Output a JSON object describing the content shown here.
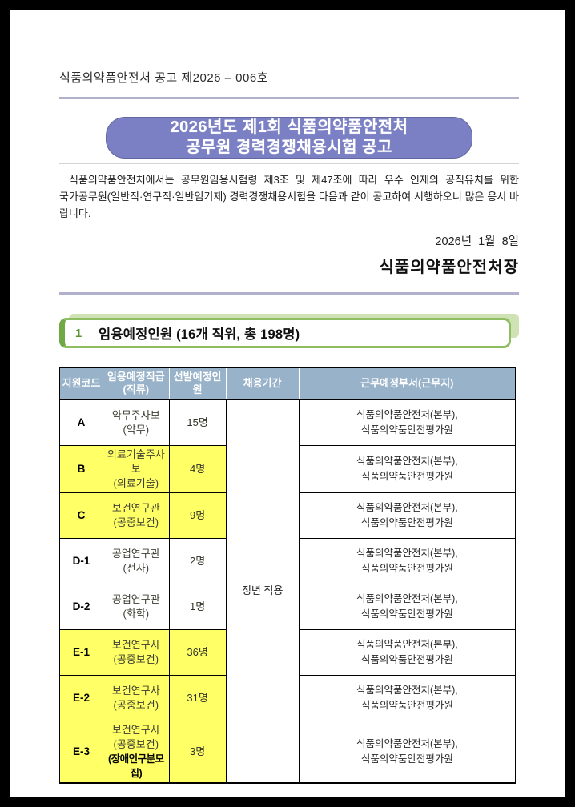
{
  "document": {
    "doc_number": "식품의약품안전처 공고 제2026 – 006호",
    "banner_line1": "2026년도 제1회 식품의약품안전처",
    "banner_line2": "공무원 경력경쟁채용시험 공고",
    "intro_line1": "식품의약품안전처에서는 공무원임용시험령 제3조 및 제47조에 따라 우수 인재의 공직유치를 위한",
    "intro_line2": "국가공무원(일반직·연구직·일반임기제) 경력경쟁채용시험을 다음과 같이 공고하여 시행하오니 많은 응시 바랍니다.",
    "date": "2026년  1월  8일",
    "signer": "식품의약품안전처장"
  },
  "section": {
    "number": "1",
    "title": "임용예정인원 (16개 직위, 총 198명)"
  },
  "table": {
    "header_code": "지원코드",
    "header_grade_line1": "임용예정직급",
    "header_grade_line2": "(직류)",
    "header_count": "선발예정인원",
    "header_period": "채용기간",
    "header_workplace": "근무예정부서(근무지)",
    "period_value": "정년 적용",
    "rows": [
      {
        "code": "A",
        "grade_lines": [
          "약무주사보",
          "(약무)"
        ],
        "count": "15명",
        "workplace_lines": [
          "식품의약품안전처(본부),",
          "식품의약품안전평가원"
        ],
        "highlight": false
      },
      {
        "code": "B",
        "grade_lines": [
          "의료기술주사보",
          "(의료기술)"
        ],
        "count": "4명",
        "workplace_lines": [
          "식품의약품안전처(본부),",
          "식품의약품안전평가원"
        ],
        "highlight": true
      },
      {
        "code": "C",
        "grade_lines": [
          "보건연구관",
          "(공중보건)"
        ],
        "count": "9명",
        "workplace_lines": [
          "식품의약품안전처(본부),",
          "식품의약품안전평가원"
        ],
        "highlight": true
      },
      {
        "code": "D-1",
        "grade_lines": [
          "공업연구관",
          "(전자)"
        ],
        "count": "2명",
        "workplace_lines": [
          "식품의약품안전처(본부),",
          "식품의약품안전평가원"
        ],
        "highlight": false
      },
      {
        "code": "D-2",
        "grade_lines": [
          "공업연구관",
          "(화학)"
        ],
        "count": "1명",
        "workplace_lines": [
          "식품의약품안전처(본부),",
          "식품의약품안전평가원"
        ],
        "highlight": false
      },
      {
        "code": "E-1",
        "grade_lines": [
          "보건연구사",
          "(공중보건)"
        ],
        "count": "36명",
        "workplace_lines": [
          "식품의약품안전처(본부),",
          "식품의약품안전평가원"
        ],
        "highlight": true
      },
      {
        "code": "E-2",
        "grade_lines": [
          "보건연구사",
          "(공중보건)"
        ],
        "count": "31명",
        "workplace_lines": [
          "식품의약품안전처(본부),",
          "식품의약품안전평가원"
        ],
        "highlight": true
      },
      {
        "code": "E-3",
        "grade_lines": [
          "보건연구사",
          "(공중보건)",
          "(장애인구분모집)"
        ],
        "count": "3명",
        "workplace_lines": [
          "식품의약품안전처(본부),",
          "식품의약품안전평가원"
        ],
        "highlight": true
      }
    ]
  },
  "colors": {
    "banner_bg": "#7b80c4",
    "table_header_bg": "#98b2c9",
    "highlight_yellow": "#ffff66",
    "section_green_border": "#8fbd61",
    "section_green_dark": "#6fa844",
    "section_green_pale": "#cfe2b4",
    "rule_purple": "#b1b1cb"
  }
}
